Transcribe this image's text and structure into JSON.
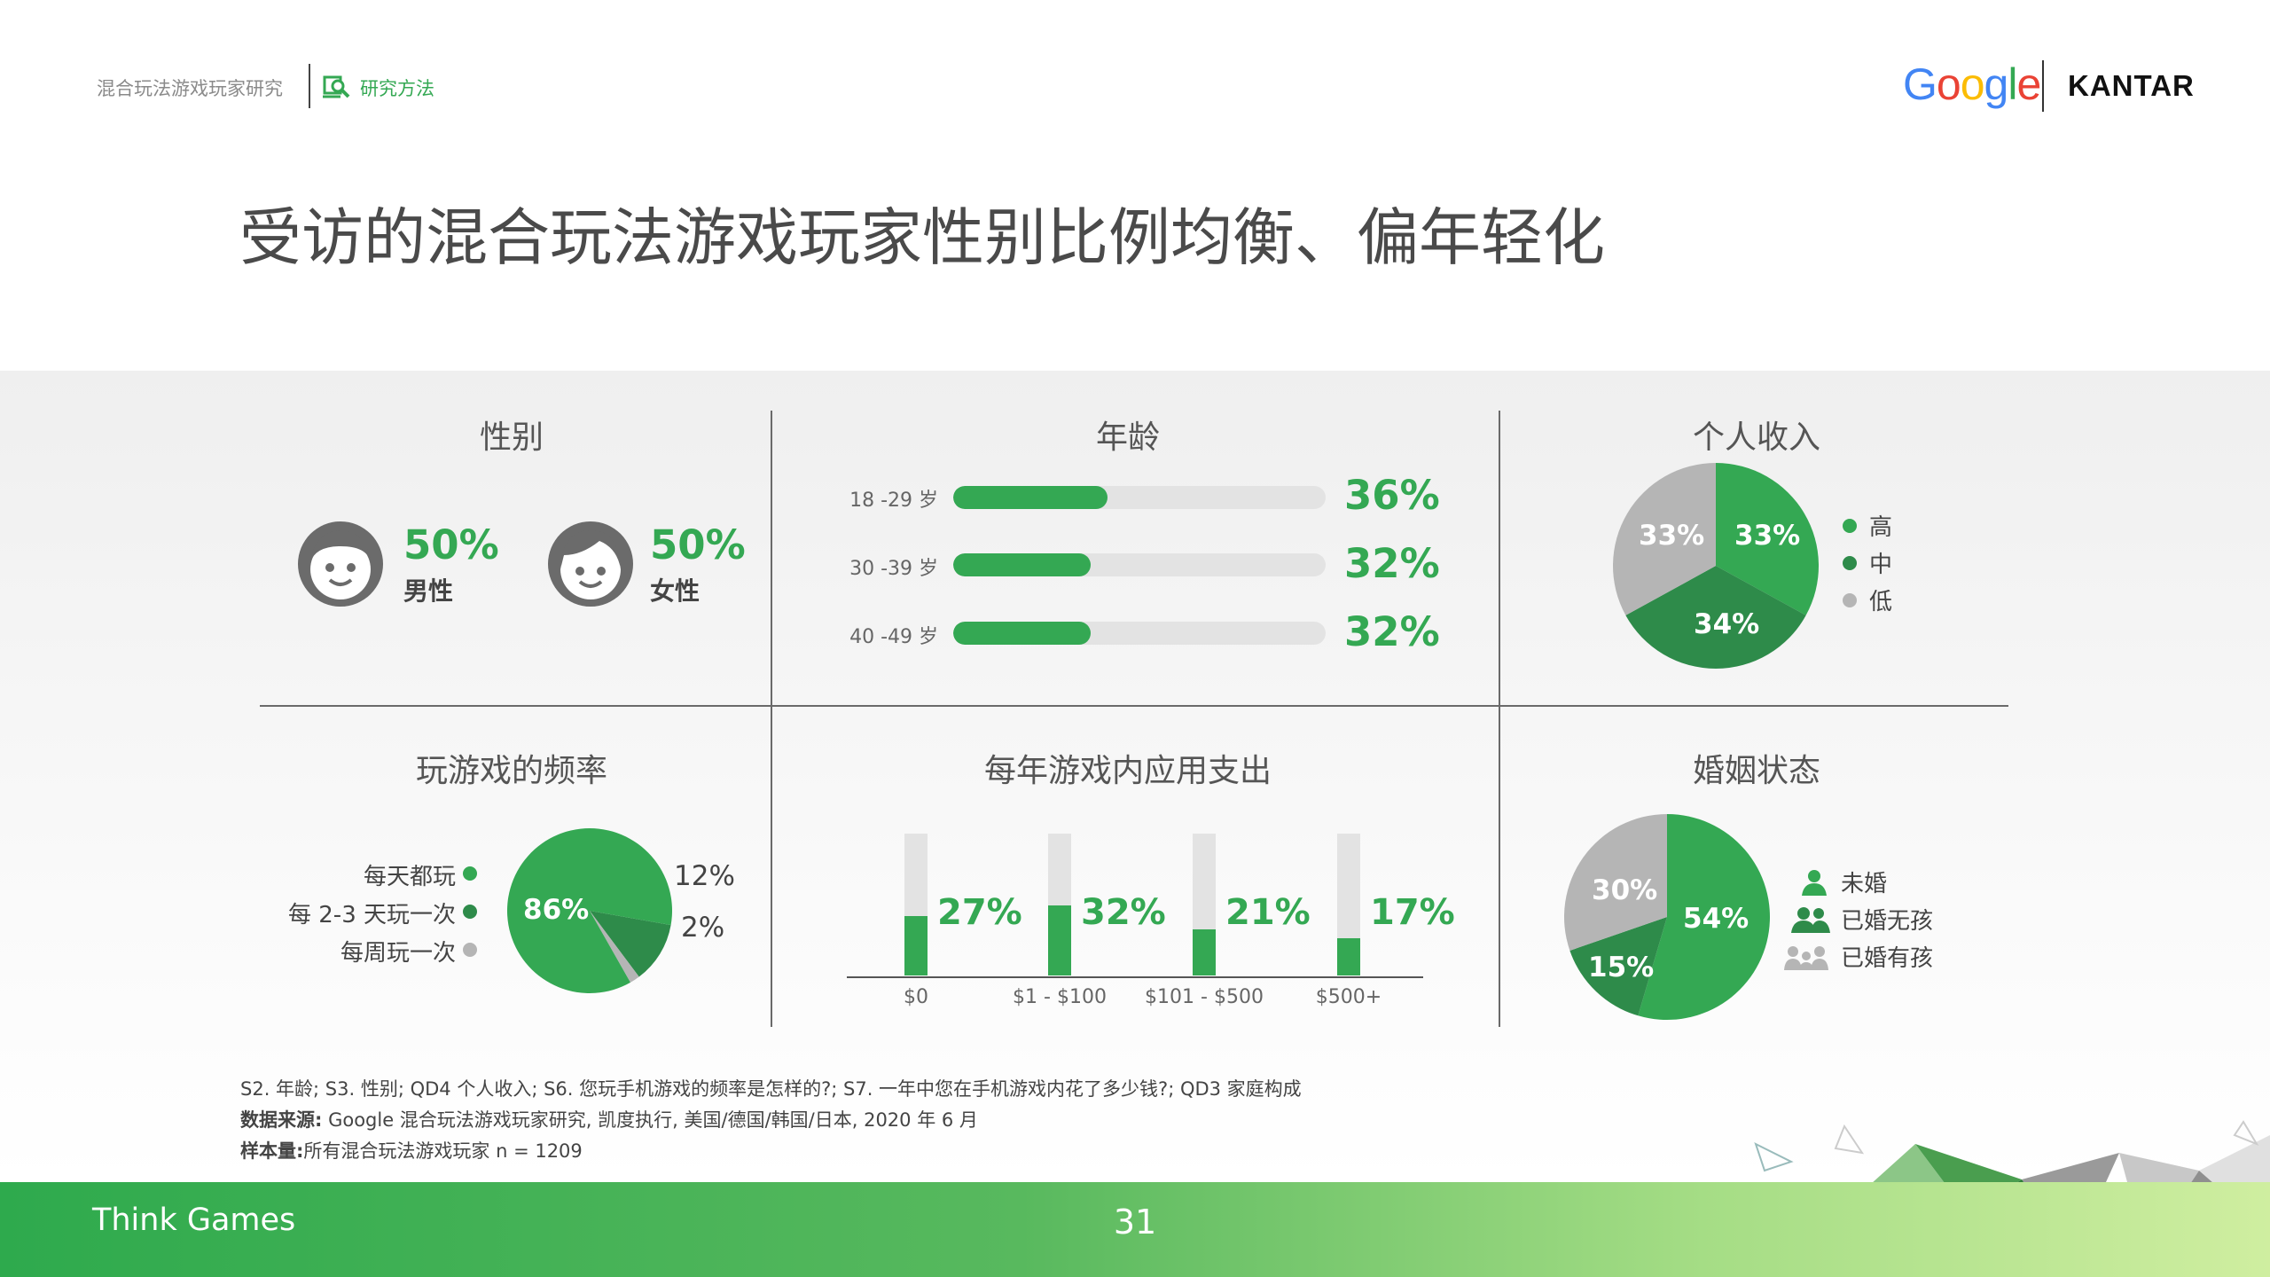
{
  "header": {
    "breadcrumb": "混合玩法游戏玩家研究",
    "section": "研究方法",
    "logo_google": "Google",
    "logo_kantar": "KANTAR"
  },
  "title": "受访的混合玩法游戏玩家性别比例均衡、偏年轻化",
  "gender": {
    "title": "性别",
    "male": {
      "pct": "50%",
      "label": "男性",
      "icon": "male-face-icon"
    },
    "female": {
      "pct": "50%",
      "label": "女性",
      "icon": "female-face-icon"
    }
  },
  "age": {
    "title": "年龄",
    "rows": [
      {
        "label": "18 -29 岁",
        "value": 36,
        "pct": "36%"
      },
      {
        "label": "30 -39 岁",
        "value": 32,
        "pct": "32%"
      },
      {
        "label": "40 -49 岁",
        "value": 32,
        "pct": "32%"
      }
    ]
  },
  "income": {
    "title": "个人收入",
    "slices": [
      {
        "label": "高",
        "value": 33,
        "pct": "33%",
        "color": "#34a853"
      },
      {
        "label": "中",
        "value": 34,
        "pct": "34%",
        "color": "#2e8b4a"
      },
      {
        "label": "低",
        "value": 33,
        "pct": "33%",
        "color": "#b5b5b5"
      }
    ]
  },
  "frequency": {
    "title": "玩游戏的频率",
    "slices": [
      {
        "label": "每天都玩",
        "value": 86,
        "pct": "86%",
        "color": "#34a853"
      },
      {
        "label": "每 2-3 天玩一次",
        "value": 12,
        "pct": "12%",
        "color": "#2e8b4a"
      },
      {
        "label": "每周玩一次",
        "value": 2,
        "pct": "2%",
        "color": "#b5b5b5"
      }
    ]
  },
  "spend": {
    "title": "每年游戏内应用支出",
    "bars": [
      {
        "label": "$0",
        "value": 27,
        "pct": "27%"
      },
      {
        "label": "$1 - $100",
        "value": 32,
        "pct": "32%"
      },
      {
        "label": "$101 - $500",
        "value": 21,
        "pct": "21%"
      },
      {
        "label": "$500+",
        "value": 17,
        "pct": "17%"
      }
    ]
  },
  "marital": {
    "title": "婚姻状态",
    "slices": [
      {
        "label": "未婚",
        "value": 54,
        "pct": "54%",
        "color": "#34a853",
        "icon": "single-person-icon"
      },
      {
        "label": "已婚无孩",
        "value": 15,
        "pct": "15%",
        "color": "#2e8b4a",
        "icon": "couple-icon"
      },
      {
        "label": "已婚有孩",
        "value": 30,
        "pct": "30%",
        "color": "#b5b5b5",
        "icon": "family-icon"
      }
    ]
  },
  "chart_data": [
    {
      "type": "bar",
      "title": "年龄",
      "categories": [
        "18 -29 岁",
        "30 -39 岁",
        "40 -49 岁"
      ],
      "values": [
        36,
        32,
        32
      ]
    },
    {
      "type": "pie",
      "title": "个人收入",
      "categories": [
        "高",
        "中",
        "低"
      ],
      "values": [
        33,
        34,
        33
      ]
    },
    {
      "type": "pie",
      "title": "玩游戏的频率",
      "categories": [
        "每天都玩",
        "每 2-3 天玩一次",
        "每周玩一次"
      ],
      "values": [
        86,
        12,
        2
      ]
    },
    {
      "type": "bar",
      "title": "每年游戏内应用支出",
      "categories": [
        "$0",
        "$1 - $100",
        "$101 - $500",
        "$500+"
      ],
      "values": [
        27,
        32,
        21,
        17
      ]
    },
    {
      "type": "pie",
      "title": "婚姻状态",
      "categories": [
        "未婚",
        "已婚无孩",
        "已婚有孩"
      ],
      "values": [
        54,
        15,
        30
      ]
    }
  ],
  "footnotes": {
    "line1": "S2. 年龄; S3. 性别; QD4 个人收入; S6. 您玩手机游戏的频率是怎样的?; S7. 一年中您在手机游戏内花了多少钱?; QD3 家庭构成",
    "source_label": "数据来源:",
    "source_text": " Google 混合玩法游戏玩家研究, 凯度执行, 美国/德国/韩国/日本, 2020 年 6 月",
    "sample_label": "样本量:",
    "sample_text": "所有混合玩法游戏玩家  n = 1209"
  },
  "footer": {
    "brand": "Think Games",
    "page": "31"
  }
}
